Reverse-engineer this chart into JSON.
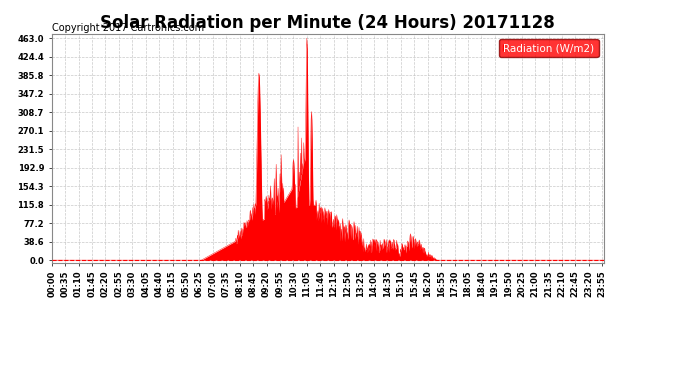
{
  "title": "Solar Radiation per Minute (24 Hours) 20171128",
  "copyright_text": "Copyright 2017 Cartronics.com",
  "legend_label": "Radiation (W/m2)",
  "y_ticks": [
    0.0,
    38.6,
    77.2,
    115.8,
    154.3,
    192.9,
    231.5,
    270.1,
    308.7,
    347.2,
    385.8,
    424.4,
    463.0
  ],
  "y_max": 463.0,
  "bg_color": "#ffffff",
  "plot_bg_color": "#ffffff",
  "fill_color": "#ff0000",
  "line_color": "#ff0000",
  "grid_color": "#bbbbbb",
  "title_fontsize": 12,
  "copyright_fontsize": 7,
  "tick_fontsize": 6,
  "legend_fontsize": 7.5,
  "x_tick_interval_minutes": 35,
  "total_minutes": 1440,
  "sunrise_min": 390,
  "sunset_min": 1005,
  "solar_noon": 660
}
